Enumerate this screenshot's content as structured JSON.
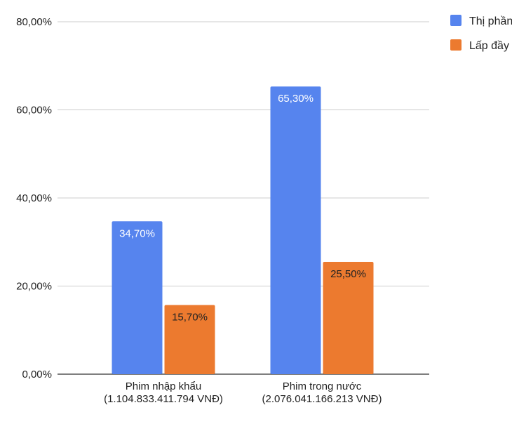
{
  "chart_data": {
    "type": "bar",
    "categories": [
      [
        "Phim nhập khẩu",
        "(1.104.833.411.794 VNĐ)"
      ],
      [
        "Phim trong nước",
        "(2.076.041.166.213 VNĐ)"
      ]
    ],
    "series": [
      {
        "name": "Thị phần",
        "color": "#5684ee",
        "label_color": "#ffffff",
        "values": [
          34.7,
          65.3
        ],
        "labels": [
          "34,70%",
          "65,30%"
        ]
      },
      {
        "name": "Lấp đầy",
        "color": "#ec7a2f",
        "label_color": "#222222",
        "values": [
          15.7,
          25.5
        ],
        "labels": [
          "15,70%",
          "25,50%"
        ]
      }
    ],
    "ylim": [
      0,
      80
    ],
    "yticks": [
      0,
      20,
      40,
      60,
      80
    ],
    "ytick_labels": [
      "0,00%",
      "20,00%",
      "40,00%",
      "60,00%",
      "80,00%"
    ],
    "grid": true,
    "legend_position": "right-top"
  }
}
